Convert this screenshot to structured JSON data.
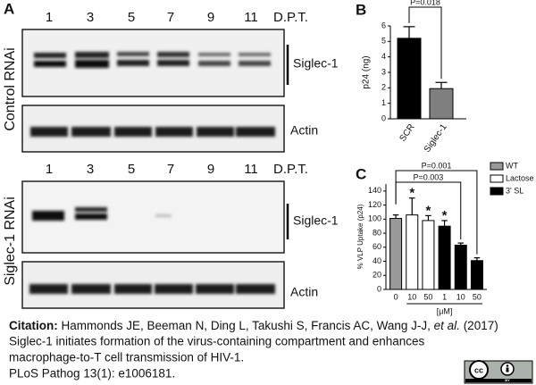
{
  "panel_a": {
    "label": "A",
    "control": {
      "row_label": "Control RNAi",
      "lanes": [
        "1",
        "3",
        "5",
        "7",
        "9",
        "11"
      ],
      "unit": "D.P.T.",
      "target": "Siglec-1",
      "loading": "Actin"
    },
    "knockdown": {
      "row_label": "Siglec-1 RNAi",
      "lanes": [
        "1",
        "3",
        "5",
        "7",
        "9",
        "11"
      ],
      "unit": "D.P.T.",
      "target": "Siglec-1",
      "loading": "Actin"
    }
  },
  "chart_data": [
    {
      "type": "bar",
      "label": "B",
      "y_label": "p24 (ng)",
      "categories": [
        "SCR",
        "Siglec-1"
      ],
      "values": [
        5.2,
        1.95
      ],
      "errors": [
        0.75,
        0.4
      ],
      "colors": [
        "#000000",
        "#7f7f7f"
      ],
      "ylim": [
        0,
        6
      ],
      "yticks": [
        0,
        1,
        2,
        3,
        4,
        5,
        6
      ],
      "annotations": [
        "P=0.018"
      ]
    },
    {
      "type": "bar",
      "label": "C",
      "y_label": "% VLP Uptake (p24)",
      "x_label": "[μM]",
      "categories": [
        "0",
        "10",
        "50",
        "1",
        "10",
        "50"
      ],
      "values": [
        101,
        106,
        98,
        90,
        63,
        41
      ],
      "errors": [
        5,
        24,
        7,
        8,
        3,
        4
      ],
      "colors": [
        "#999999",
        "#ffffff",
        "#ffffff",
        "#000000",
        "#000000",
        "#000000"
      ],
      "ylim": [
        0,
        150
      ],
      "yticks": [
        0,
        20,
        40,
        60,
        80,
        100,
        120,
        140
      ],
      "legend": [
        {
          "name": "WT",
          "color": "#999999"
        },
        {
          "name": "Lactose",
          "color": "#ffffff"
        },
        {
          "name": "3' SL",
          "color": "#000000"
        }
      ],
      "annotations": [
        "P=0.001",
        "P=0.003"
      ],
      "significance_marks": [
        {
          "category": 1,
          "text": "*"
        },
        {
          "category": 2,
          "text": "*"
        },
        {
          "category": 3,
          "text": "*"
        }
      ]
    }
  ],
  "citation": {
    "lead": "Citation:",
    "authors": " Hammonds JE, Beeman N, Ding L, Takushi S, Francis AC, Wang J-J, ",
    "etal": "et al.",
    "year": " (2017)",
    "lines": [
      "Siglec-1 initiates formation of the virus-containing compartment and enhances",
      "macrophage-to-T cell transmission of HIV-1.",
      "PLoS Pathog 13(1): e1006181."
    ],
    "license": "BY"
  }
}
